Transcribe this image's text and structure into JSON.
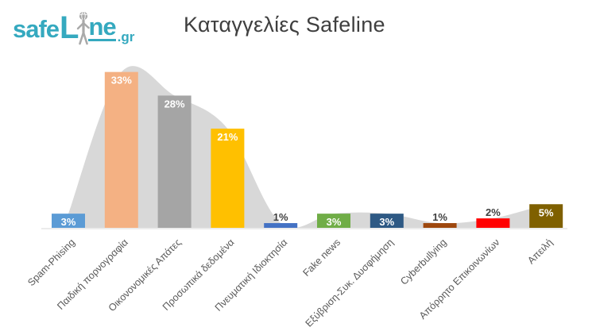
{
  "logo": {
    "word_start": "safe",
    "word_mid": "L",
    "word_end": "ne",
    "tld": ".gr",
    "brand_color": "#35A9BF",
    "figure_color": "#A9A9A9",
    "figure": "person-globe-icon"
  },
  "header": {
    "title": "Καταγγελίες Safeline"
  },
  "chart_data": {
    "type": "bar",
    "title": "Καταγγελίες Safeline",
    "unit": "%",
    "grid": false,
    "legend": false,
    "ylim": [
      0,
      35
    ],
    "axis_color": "#D9D9D9",
    "category_label_color": "#595959",
    "area_series": {
      "name": "smoothed-area-background",
      "color": "#D8D8D8",
      "smooth": true,
      "values": [
        3,
        33,
        28,
        21,
        1,
        3,
        3,
        1,
        2,
        5
      ]
    },
    "categories": [
      "Spam-Phising",
      "Παιδική πορνογραφία",
      "Οικονονομικές Απάτες",
      "Προσωπικά δεδομένα",
      "Πνευματική Ιδιοκτησία",
      "Fake news",
      "Εξύβριση-Συκ. Δυσφήμηση",
      "Cyberbullying",
      "Απόρρητο Επικοινωνίων",
      "Απειλή"
    ],
    "bars": [
      {
        "category": "Spam-Phising",
        "value": 3,
        "label": "3%",
        "color": "#5B9BD5",
        "label_color": "#FFFFFF",
        "label_pos": "in"
      },
      {
        "category": "Παιδική πορνογραφία",
        "value": 33,
        "label": "33%",
        "color": "#F4B183",
        "label_color": "#FFFFFF",
        "label_pos": "in"
      },
      {
        "category": "Οικονονομικές Απάτες",
        "value": 28,
        "label": "28%",
        "color": "#A5A5A5",
        "label_color": "#FFFFFF",
        "label_pos": "in"
      },
      {
        "category": "Προσωπικά δεδομένα",
        "value": 21,
        "label": "21%",
        "color": "#FFC000",
        "label_color": "#FFFFFF",
        "label_pos": "in"
      },
      {
        "category": "Πνευματική Ιδιοκτησία",
        "value": 1,
        "label": "1%",
        "color": "#4472C4",
        "label_color": "#404040",
        "label_pos": "out"
      },
      {
        "category": "Fake news",
        "value": 3,
        "label": "3%",
        "color": "#70AD47",
        "label_color": "#FFFFFF",
        "label_pos": "in"
      },
      {
        "category": "Εξύβριση-Συκ. Δυσφήμηση",
        "value": 3,
        "label": "3%",
        "color": "#2E5984",
        "label_color": "#FFFFFF",
        "label_pos": "in"
      },
      {
        "category": "Cyberbullying",
        "value": 1,
        "label": "1%",
        "color": "#9E480E",
        "label_color": "#404040",
        "label_pos": "out"
      },
      {
        "category": "Απόρρητο Επικοινωνίων",
        "value": 2,
        "label": "2%",
        "color": "#FF0000",
        "label_color": "#404040",
        "label_pos": "out"
      },
      {
        "category": "Απειλή",
        "value": 5,
        "label": "5%",
        "color": "#7F6000",
        "label_color": "#FFFFFF",
        "label_pos": "in"
      }
    ]
  }
}
